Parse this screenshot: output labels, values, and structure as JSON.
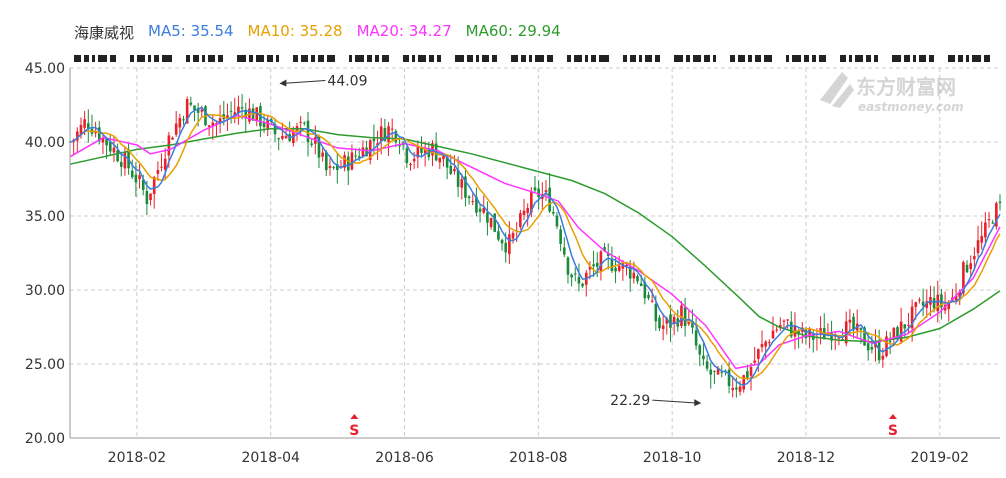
{
  "legend": {
    "stock_name": "海康威视",
    "ma5": {
      "label": "MA5: 35.54",
      "color": "#3b7ddd"
    },
    "ma10": {
      "label": "MA10: 35.28",
      "color": "#e8a000"
    },
    "ma20": {
      "label": "MA20: 34.27",
      "color": "#ff33ff"
    },
    "ma60": {
      "label": "MA60: 29.94",
      "color": "#2e9b2e"
    }
  },
  "watermark": {
    "cn": "东方财富网",
    "en": "eastmoney.com"
  },
  "colors": {
    "up": "#e8202a",
    "down": "#1a8a3a",
    "grid": "#cccccc"
  },
  "chart_data": {
    "type": "candlestick",
    "ylim": [
      20,
      45
    ],
    "y_ticks": [
      "45.00",
      "40.00",
      "35.00",
      "30.00",
      "25.00",
      "20.00"
    ],
    "x_ticks": [
      "2018-02",
      "2018-04",
      "2018-06",
      "2018-08",
      "2018-10",
      "2018-12",
      "2019-02"
    ],
    "x_tick_months": [
      1,
      3,
      5,
      7,
      9,
      11,
      13
    ],
    "x_range_months": [
      0.0,
      13.9
    ],
    "annotations": [
      {
        "text": "44.09",
        "month": 3.1,
        "value": 44.09,
        "side": "right"
      },
      {
        "text": "22.29",
        "month": 9.45,
        "value": 22.29,
        "side": "left"
      }
    ],
    "markers": [
      {
        "label": "S",
        "month": 4.25
      },
      {
        "label": "S",
        "month": 12.3
      }
    ],
    "close_path": [
      [
        0.02,
        40.0
      ],
      [
        0.25,
        41.5
      ],
      [
        0.5,
        40.2
      ],
      [
        0.8,
        38.8
      ],
      [
        1.0,
        37.5
      ],
      [
        1.15,
        36.2
      ],
      [
        1.3,
        38.0
      ],
      [
        1.5,
        40.5
      ],
      [
        1.75,
        42.5
      ],
      [
        2.0,
        41.8
      ],
      [
        2.2,
        41.2
      ],
      [
        2.4,
        42.0
      ],
      [
        2.6,
        42.3
      ],
      [
        2.85,
        41.5
      ],
      [
        3.1,
        40.4
      ],
      [
        3.3,
        40.6
      ],
      [
        3.5,
        40.9
      ],
      [
        3.7,
        39.5
      ],
      [
        3.85,
        37.8
      ],
      [
        4.0,
        38.3
      ],
      [
        4.2,
        38.8
      ],
      [
        4.4,
        39.6
      ],
      [
        4.6,
        40.4
      ],
      [
        4.75,
        40.9
      ],
      [
        4.9,
        40.6
      ],
      [
        5.05,
        39.0
      ],
      [
        5.2,
        39.2
      ],
      [
        5.4,
        39.6
      ],
      [
        5.55,
        39.0
      ],
      [
        5.75,
        37.5
      ],
      [
        5.95,
        36.5
      ],
      [
        6.1,
        35.8
      ],
      [
        6.25,
        35.0
      ],
      [
        6.4,
        33.8
      ],
      [
        6.55,
        33.0
      ],
      [
        6.7,
        34.2
      ],
      [
        6.85,
        35.8
      ],
      [
        7.0,
        36.5
      ],
      [
        7.15,
        36.2
      ],
      [
        7.3,
        34.2
      ],
      [
        7.45,
        31.5
      ],
      [
        7.6,
        30.2
      ],
      [
        7.75,
        31.2
      ],
      [
        7.95,
        32.0
      ],
      [
        8.15,
        31.8
      ],
      [
        8.35,
        31.4
      ],
      [
        8.5,
        30.8
      ],
      [
        8.65,
        29.2
      ],
      [
        8.8,
        27.5
      ],
      [
        9.0,
        27.8
      ],
      [
        9.15,
        28.5
      ],
      [
        9.3,
        27.0
      ],
      [
        9.45,
        24.8
      ],
      [
        9.6,
        24.2
      ],
      [
        9.8,
        23.9
      ],
      [
        9.95,
        23.6
      ],
      [
        10.1,
        24.2
      ],
      [
        10.3,
        25.8
      ],
      [
        10.5,
        27.2
      ],
      [
        10.65,
        27.8
      ],
      [
        10.8,
        27.3
      ],
      [
        11.0,
        26.8
      ],
      [
        11.2,
        26.9
      ],
      [
        11.45,
        27.4
      ],
      [
        11.7,
        27.3
      ],
      [
        11.95,
        26.3
      ],
      [
        12.1,
        25.8
      ],
      [
        12.3,
        26.8
      ],
      [
        12.5,
        27.8
      ],
      [
        12.7,
        28.8
      ],
      [
        12.9,
        29.3
      ],
      [
        13.05,
        28.9
      ],
      [
        13.2,
        29.4
      ],
      [
        13.35,
        31.2
      ],
      [
        13.5,
        32.6
      ],
      [
        13.65,
        33.6
      ],
      [
        13.8,
        35.2
      ],
      [
        13.9,
        35.5
      ]
    ],
    "ma_paths": {
      "ma60": [
        [
          0.0,
          38.5
        ],
        [
          0.5,
          39.0
        ],
        [
          1.0,
          39.5
        ],
        [
          1.5,
          39.8
        ],
        [
          2.0,
          40.2
        ],
        [
          2.5,
          40.6
        ],
        [
          3.0,
          40.9
        ],
        [
          3.5,
          40.9
        ],
        [
          4.0,
          40.5
        ],
        [
          4.5,
          40.3
        ],
        [
          5.0,
          40.2
        ],
        [
          5.5,
          39.7
        ],
        [
          6.0,
          39.2
        ],
        [
          6.5,
          38.6
        ],
        [
          7.0,
          38.0
        ],
        [
          7.5,
          37.4
        ],
        [
          8.0,
          36.5
        ],
        [
          8.5,
          35.2
        ],
        [
          9.0,
          33.6
        ],
        [
          9.5,
          31.6
        ],
        [
          10.0,
          29.5
        ],
        [
          10.3,
          28.2
        ],
        [
          10.6,
          27.5
        ],
        [
          11.0,
          26.9
        ],
        [
          11.5,
          26.6
        ],
        [
          12.0,
          26.5
        ],
        [
          12.5,
          26.8
        ],
        [
          13.0,
          27.4
        ],
        [
          13.5,
          28.7
        ],
        [
          13.9,
          29.94
        ]
      ],
      "ma20": [
        [
          0.0,
          39.0
        ],
        [
          0.5,
          40.3
        ],
        [
          1.0,
          39.8
        ],
        [
          1.2,
          39.2
        ],
        [
          1.5,
          39.5
        ],
        [
          2.0,
          40.8
        ],
        [
          2.5,
          41.8
        ],
        [
          3.0,
          41.2
        ],
        [
          3.5,
          40.4
        ],
        [
          4.0,
          39.6
        ],
        [
          4.5,
          39.4
        ],
        [
          5.0,
          39.9
        ],
        [
          5.5,
          39.4
        ],
        [
          6.0,
          38.3
        ],
        [
          6.5,
          37.2
        ],
        [
          7.0,
          36.5
        ],
        [
          7.3,
          36.0
        ],
        [
          7.6,
          34.2
        ],
        [
          8.0,
          32.6
        ],
        [
          8.5,
          31.3
        ],
        [
          9.0,
          29.7
        ],
        [
          9.5,
          27.6
        ],
        [
          9.95,
          24.7
        ],
        [
          10.3,
          25.0
        ],
        [
          10.6,
          26.3
        ],
        [
          11.0,
          26.9
        ],
        [
          11.5,
          27.2
        ],
        [
          12.0,
          26.4
        ],
        [
          12.5,
          27.0
        ],
        [
          13.0,
          28.5
        ],
        [
          13.5,
          30.8
        ],
        [
          13.9,
          34.27
        ]
      ]
    }
  }
}
